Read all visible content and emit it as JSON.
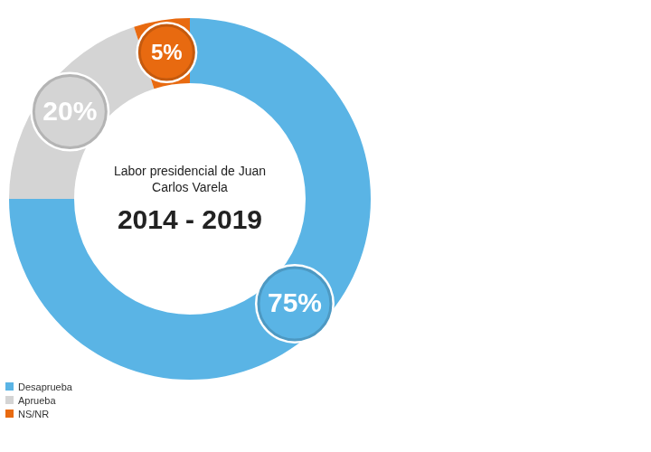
{
  "chart_data": {
    "type": "doughnut",
    "title": "Labor presidencial de Juan Carlos Varela",
    "subtitle": "2014 - 2019",
    "categories": [
      "Desaprueba",
      "Aprueba",
      "NS/NR"
    ],
    "values": [
      75,
      20,
      5
    ],
    "value_labels": [
      "75%",
      "20%",
      "5%"
    ],
    "colors": [
      "#5ab4e5",
      "#d4d4d4",
      "#e86a10"
    ],
    "legend": "lower left",
    "data_labels": true
  }
}
